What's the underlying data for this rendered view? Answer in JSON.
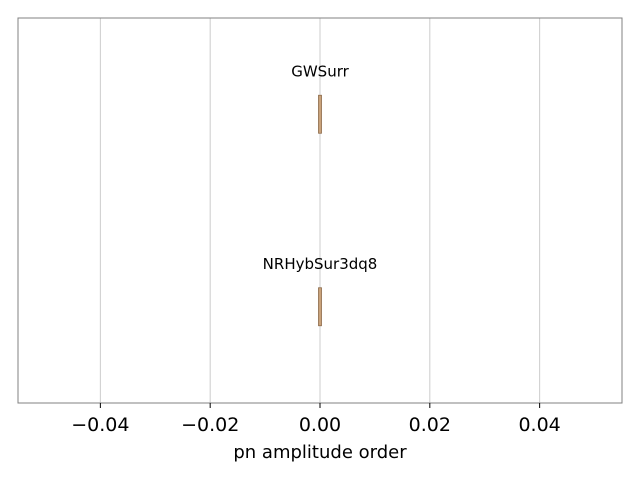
{
  "chart_data": {
    "type": "violin",
    "title": "",
    "xlabel": "pn amplitude order",
    "ylabel": "",
    "xlim": [
      -0.055,
      0.055
    ],
    "xticks": [
      -0.04,
      -0.02,
      0.0,
      0.02,
      0.04
    ],
    "xtick_labels": [
      "−0.04",
      "−0.02",
      "0.00",
      "0.02",
      "0.04"
    ],
    "grid": "vertical",
    "categories": [
      "GWSurr",
      "NRHybSur3dq8"
    ],
    "values": [
      0.0,
      0.0
    ],
    "colors": {
      "violin_fill": "#c9a27a",
      "violin_edge": "#8c6a4a",
      "grid": "#cccccc",
      "frame": "#808080"
    }
  }
}
